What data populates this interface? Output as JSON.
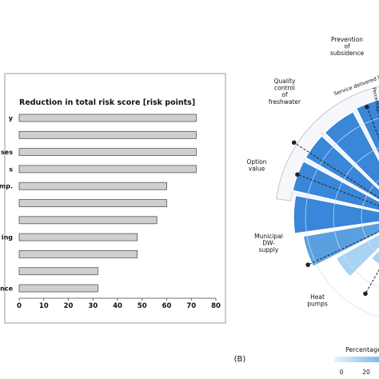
{
  "chart_data": [
    {
      "type": "bar",
      "orientation": "horizontal",
      "title": "Reduction in total risk score [risk points]",
      "categories_visible_fragments": [
        "y",
        "",
        "ses",
        "s",
        "mp.",
        "",
        "",
        "ing",
        "",
        "",
        "ence"
      ],
      "values": [
        72,
        72,
        72,
        72,
        60,
        60,
        56,
        48,
        48,
        32,
        32
      ],
      "xlim": [
        0,
        80
      ],
      "xticks": [
        0,
        10,
        20,
        30,
        40,
        50,
        60,
        70,
        80
      ],
      "bar_color": "#cfcfcf",
      "bar_edge_color": "#555555"
    },
    {
      "type": "radial_bar",
      "panel_label": "(B)",
      "ring_text": "Service delivered [%",
      "inner_text": "Percentage of",
      "categories": [
        {
          "label": [
            "Prevention",
            "of",
            "subsidence"
          ]
        },
        {
          "label": [
            "Quality",
            "control",
            "of",
            "freshwater"
          ]
        },
        {
          "label": [
            "Option",
            "value"
          ]
        },
        {
          "label": [
            "Municipal",
            "DW-",
            "supply"
          ]
        },
        {
          "label": [
            "Heat",
            "pumps"
          ]
        }
      ],
      "bar_color_dark": "#3a86d8",
      "bar_color_light": "#a9d3f2",
      "legend": {
        "title": "Percentage",
        "ticks": [
          "0",
          "20"
        ]
      }
    }
  ]
}
